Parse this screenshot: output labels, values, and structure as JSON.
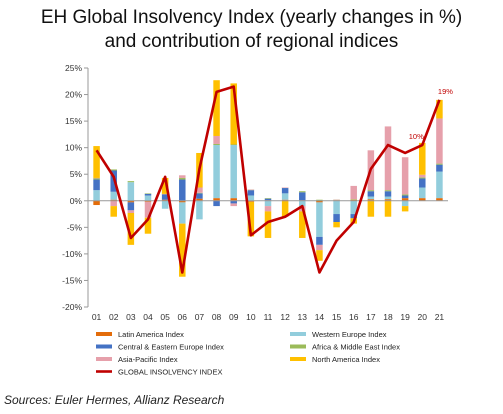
{
  "title_lines": [
    "EH Global Insolvency Index (yearly changes in %)",
    "and contribution of regional indices"
  ],
  "source": "Sources: Euler Hermes, Allianz Research",
  "chart_data": {
    "type": "bar",
    "stacked": true,
    "categories": [
      "01",
      "02",
      "03",
      "04",
      "05",
      "06",
      "07",
      "08",
      "09",
      "10",
      "11",
      "12",
      "13",
      "14",
      "15",
      "16",
      "17",
      "18",
      "19",
      "20",
      "21"
    ],
    "ylim": [
      -20,
      25
    ],
    "yticks": [
      -20,
      -15,
      -10,
      -5,
      0,
      5,
      10,
      15,
      20,
      25
    ],
    "ytick_labels": [
      "-20%",
      "-15%",
      "-10%",
      "-5%",
      "0%",
      "5%",
      "10%",
      "15%",
      "20%",
      "25%"
    ],
    "grid": false,
    "legend_position": "bottom",
    "series": [
      {
        "name": "Latin America Index",
        "color": "#e36c0a",
        "values": [
          -0.8,
          0.2,
          -0.3,
          -0.2,
          0.2,
          -0.3,
          0.4,
          0.5,
          0.5,
          -0.2,
          0.1,
          0.2,
          0.1,
          -0.3,
          0.1,
          0.2,
          0.3,
          0.3,
          0.5,
          0.5,
          0.5
        ]
      },
      {
        "name": "Western Europe Index",
        "color": "#92cddc",
        "values": [
          2,
          1.5,
          3.5,
          1,
          -1.5,
          -4,
          -3.5,
          10,
          10,
          1,
          -1,
          1.2,
          -1,
          -6.5,
          -2.5,
          -2.5,
          0.5,
          0.5,
          -1,
          2,
          5
        ]
      },
      {
        "name": "Central & Eastern Europe Index",
        "color": "#4472c4",
        "values": [
          2,
          4,
          -1.5,
          0.3,
          1,
          4,
          1,
          -1,
          -0.5,
          1,
          0.3,
          1,
          1.5,
          -1.5,
          -1.5,
          -0.8,
          1,
          1,
          0.5,
          1.7,
          1.3
        ]
      },
      {
        "name": "Africa & Middle East Index",
        "color": "#9bbb59",
        "values": [
          0.3,
          0.2,
          0.2,
          0.1,
          0.1,
          0.3,
          0.1,
          0.2,
          0.1,
          0.1,
          0.1,
          0.1,
          0.2,
          0.2,
          0.1,
          0.1,
          0.2,
          0.2,
          0.2,
          0.2,
          0.2
        ]
      },
      {
        "name": "Asia-Pacific Index",
        "color": "#e6a0ab",
        "values": [
          0,
          -1,
          -0.5,
          -3,
          0,
          0.5,
          1,
          1.5,
          -0.5,
          0,
          -1,
          0,
          -1,
          -1,
          0,
          2.5,
          7.5,
          12,
          7,
          0.5,
          8.5
        ]
      },
      {
        "name": "North America Index",
        "color": "#ffc000",
        "values": [
          6,
          -2,
          -6,
          -3,
          3,
          -10,
          6.5,
          10.5,
          11.5,
          -6.5,
          -5,
          -3,
          -5,
          -2,
          -1,
          -1,
          -3,
          -3,
          -1,
          6,
          3.5
        ]
      }
    ],
    "line_series": {
      "name": "GLOBAL INSOLVENCY INDEX",
      "color": "#c00000",
      "values": [
        9.5,
        4.5,
        -7,
        -3.5,
        4.5,
        -13.5,
        6,
        20.5,
        21.5,
        -6.5,
        -4,
        -3,
        -1,
        -13.5,
        -7.5,
        -4,
        6,
        10.5,
        9,
        10.5,
        19
      ]
    },
    "annotations": [
      {
        "category": "20",
        "text": "10%",
        "color": "#c00000"
      },
      {
        "category": "21",
        "text": "19%",
        "color": "#c00000"
      }
    ]
  }
}
